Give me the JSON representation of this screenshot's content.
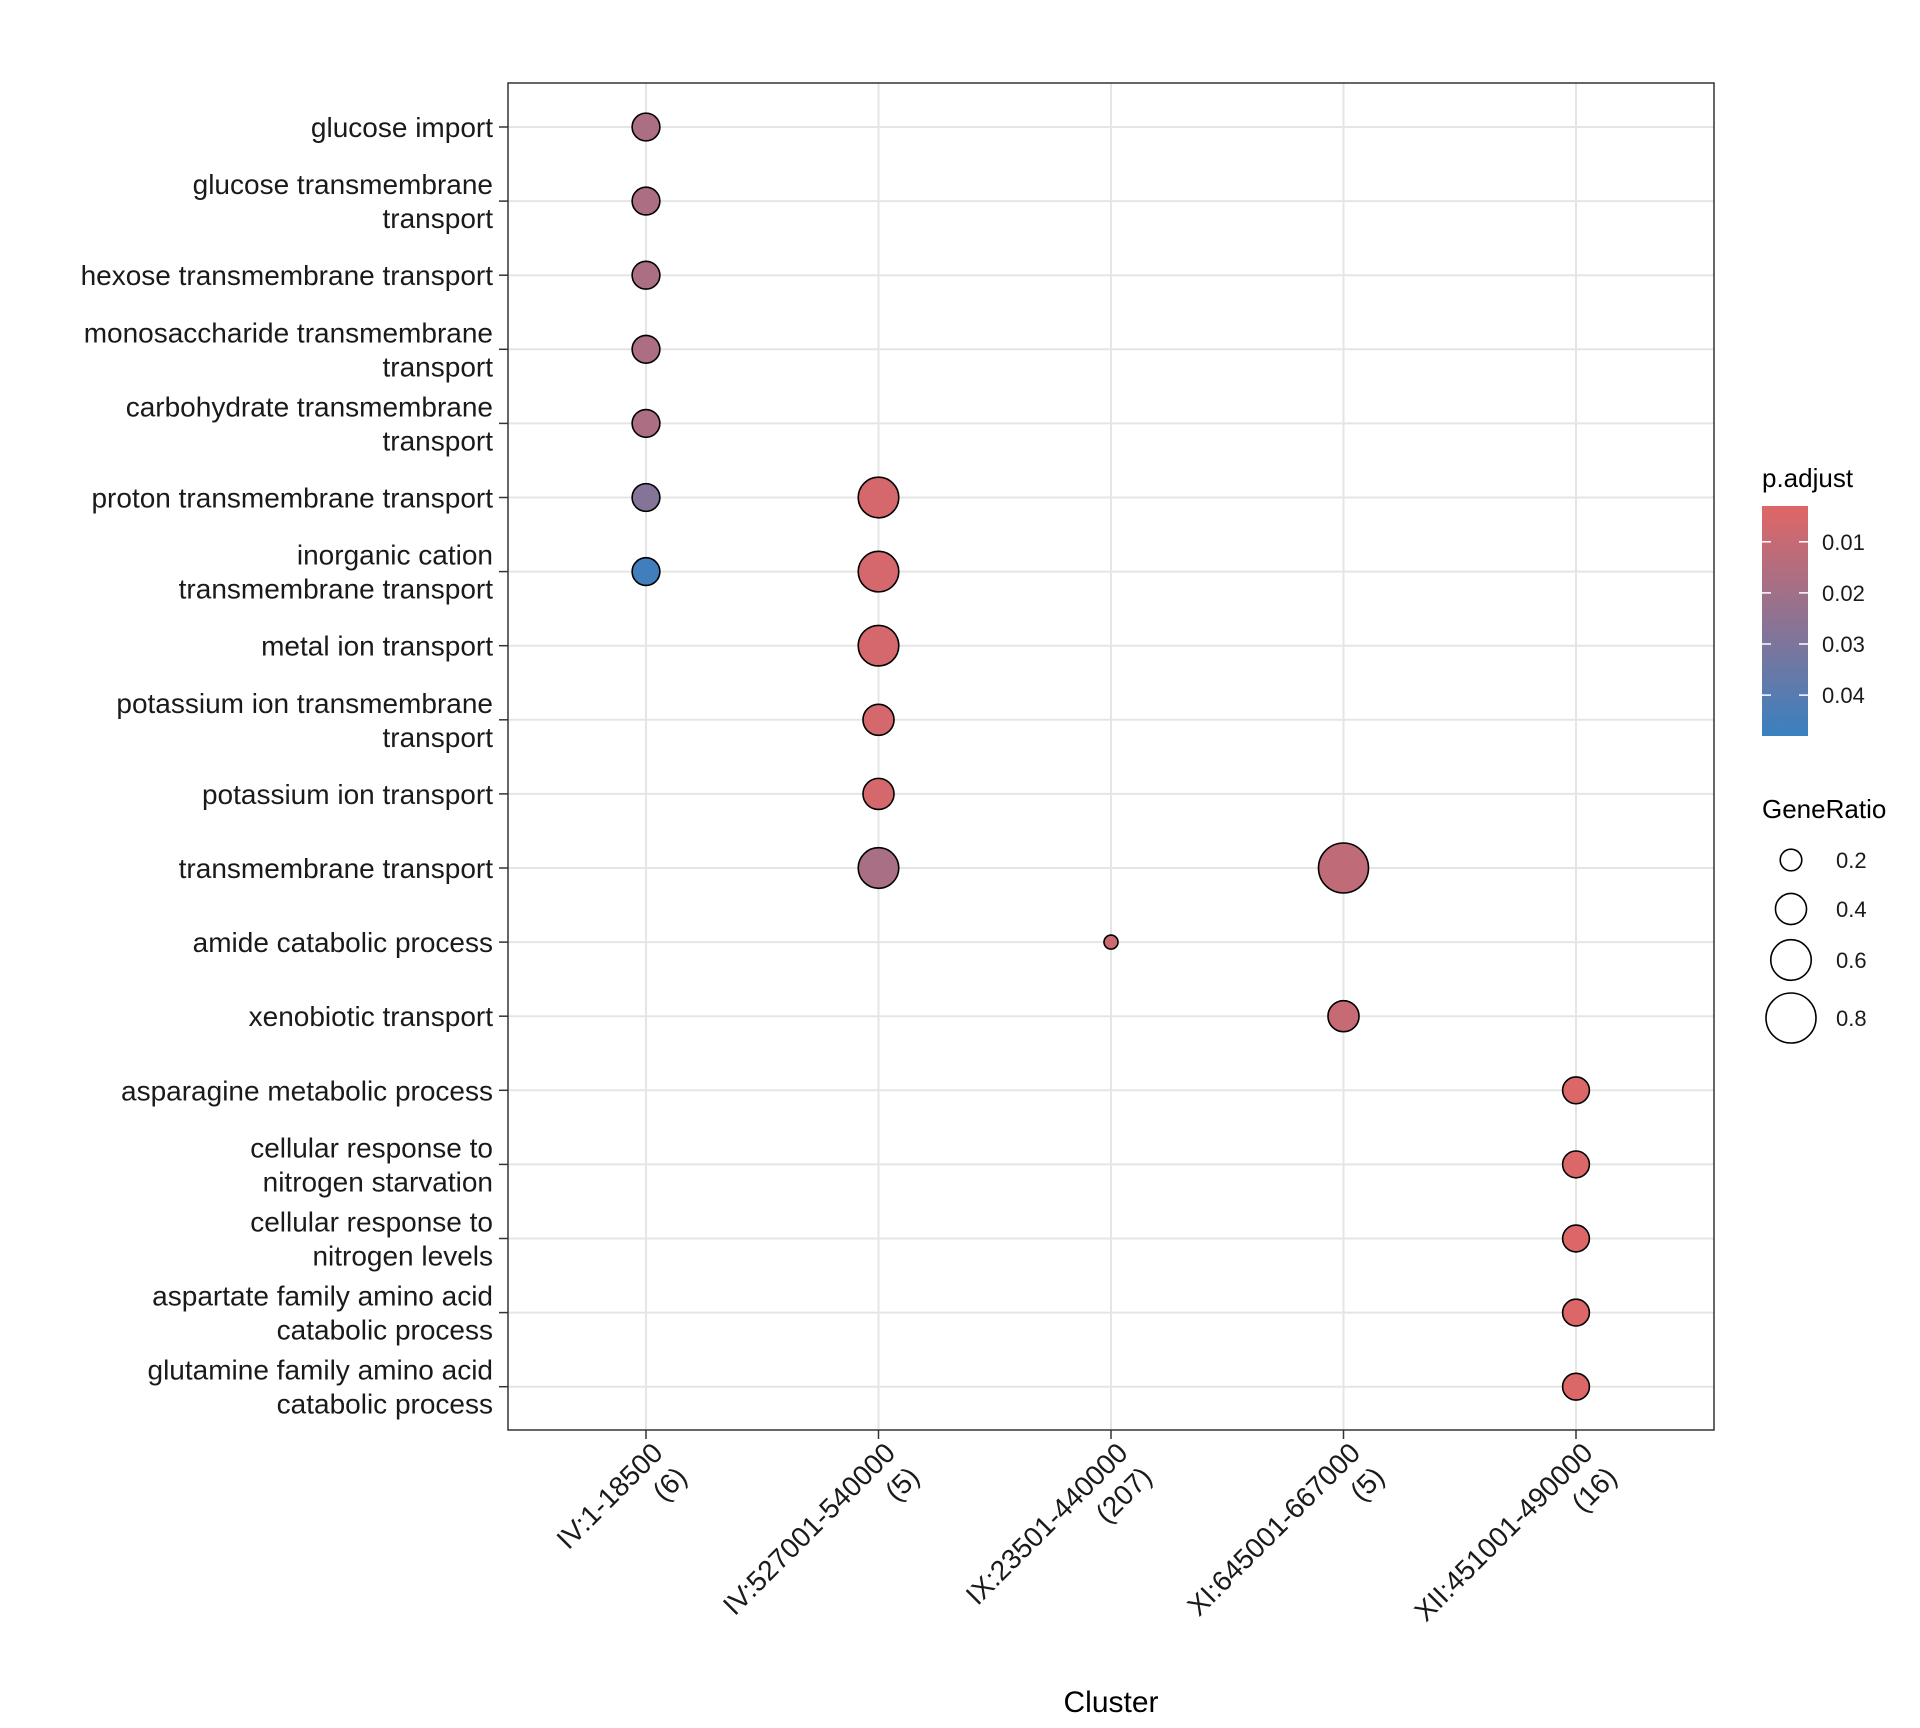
{
  "chart_data": {
    "type": "scatter",
    "xlabel": "Cluster",
    "clusters": [
      [
        "IV:1-18500",
        "(6)"
      ],
      [
        "IV:527001-540000",
        "(5)"
      ],
      [
        "IX:23501-440000",
        "(207)"
      ],
      [
        "XI:645001-667000",
        "(5)"
      ],
      [
        "XII:451001-490000",
        "(16)"
      ]
    ],
    "terms": [
      [
        "glucose import"
      ],
      [
        "glucose transmembrane",
        "transport"
      ],
      [
        "hexose transmembrane transport"
      ],
      [
        "monosaccharide transmembrane",
        "transport"
      ],
      [
        "carbohydrate transmembrane",
        "transport"
      ],
      [
        "proton transmembrane transport"
      ],
      [
        "inorganic cation",
        "transmembrane transport"
      ],
      [
        "metal ion transport"
      ],
      [
        "potassium ion transmembrane",
        "transport"
      ],
      [
        "potassium ion transport"
      ],
      [
        "transmembrane transport"
      ],
      [
        "amide catabolic process"
      ],
      [
        "xenobiotic transport"
      ],
      [
        "asparagine metabolic process"
      ],
      [
        "cellular response to",
        "nitrogen starvation"
      ],
      [
        "cellular response to",
        "nitrogen levels"
      ],
      [
        "aspartate family amino acid",
        "catabolic process"
      ],
      [
        "glutamine family amino acid",
        "catabolic process"
      ]
    ],
    "points": [
      {
        "cluster": 0,
        "term": 0,
        "gene_ratio": 0.33,
        "p_adjust": 0.017
      },
      {
        "cluster": 0,
        "term": 1,
        "gene_ratio": 0.33,
        "p_adjust": 0.017
      },
      {
        "cluster": 0,
        "term": 2,
        "gene_ratio": 0.33,
        "p_adjust": 0.017
      },
      {
        "cluster": 0,
        "term": 3,
        "gene_ratio": 0.33,
        "p_adjust": 0.017
      },
      {
        "cluster": 0,
        "term": 4,
        "gene_ratio": 0.33,
        "p_adjust": 0.017
      },
      {
        "cluster": 0,
        "term": 5,
        "gene_ratio": 0.33,
        "p_adjust": 0.028
      },
      {
        "cluster": 0,
        "term": 6,
        "gene_ratio": 0.33,
        "p_adjust": 0.046
      },
      {
        "cluster": 1,
        "term": 5,
        "gene_ratio": 0.6,
        "p_adjust": 0.006
      },
      {
        "cluster": 1,
        "term": 6,
        "gene_ratio": 0.6,
        "p_adjust": 0.006
      },
      {
        "cluster": 1,
        "term": 7,
        "gene_ratio": 0.6,
        "p_adjust": 0.006
      },
      {
        "cluster": 1,
        "term": 8,
        "gene_ratio": 0.4,
        "p_adjust": 0.006
      },
      {
        "cluster": 1,
        "term": 9,
        "gene_ratio": 0.4,
        "p_adjust": 0.006
      },
      {
        "cluster": 1,
        "term": 10,
        "gene_ratio": 0.6,
        "p_adjust": 0.018
      },
      {
        "cluster": 2,
        "term": 11,
        "gene_ratio": 0.04,
        "p_adjust": 0.008
      },
      {
        "cluster": 3,
        "term": 10,
        "gene_ratio": 0.8,
        "p_adjust": 0.012
      },
      {
        "cluster": 3,
        "term": 12,
        "gene_ratio": 0.4,
        "p_adjust": 0.01
      },
      {
        "cluster": 4,
        "term": 13,
        "gene_ratio": 0.31,
        "p_adjust": 0.004
      },
      {
        "cluster": 4,
        "term": 14,
        "gene_ratio": 0.31,
        "p_adjust": 0.004
      },
      {
        "cluster": 4,
        "term": 15,
        "gene_ratio": 0.31,
        "p_adjust": 0.004
      },
      {
        "cluster": 4,
        "term": 16,
        "gene_ratio": 0.31,
        "p_adjust": 0.004
      },
      {
        "cluster": 4,
        "term": 17,
        "gene_ratio": 0.31,
        "p_adjust": 0.004
      }
    ],
    "color_legend": {
      "title": "p.adjust",
      "ticks": [
        0.01,
        0.02,
        0.03,
        0.04
      ],
      "tick_labels": [
        "0.01",
        "0.02",
        "0.03",
        "0.04"
      ],
      "range": [
        0.003,
        0.048
      ],
      "low_color": "#e06666",
      "high_color": "#3a80c0"
    },
    "size_legend": {
      "title": "GeneRatio",
      "values": [
        0.2,
        0.4,
        0.6,
        0.8
      ],
      "labels": [
        "0.2",
        "0.4",
        "0.6",
        "0.8"
      ]
    },
    "grid": true
  }
}
